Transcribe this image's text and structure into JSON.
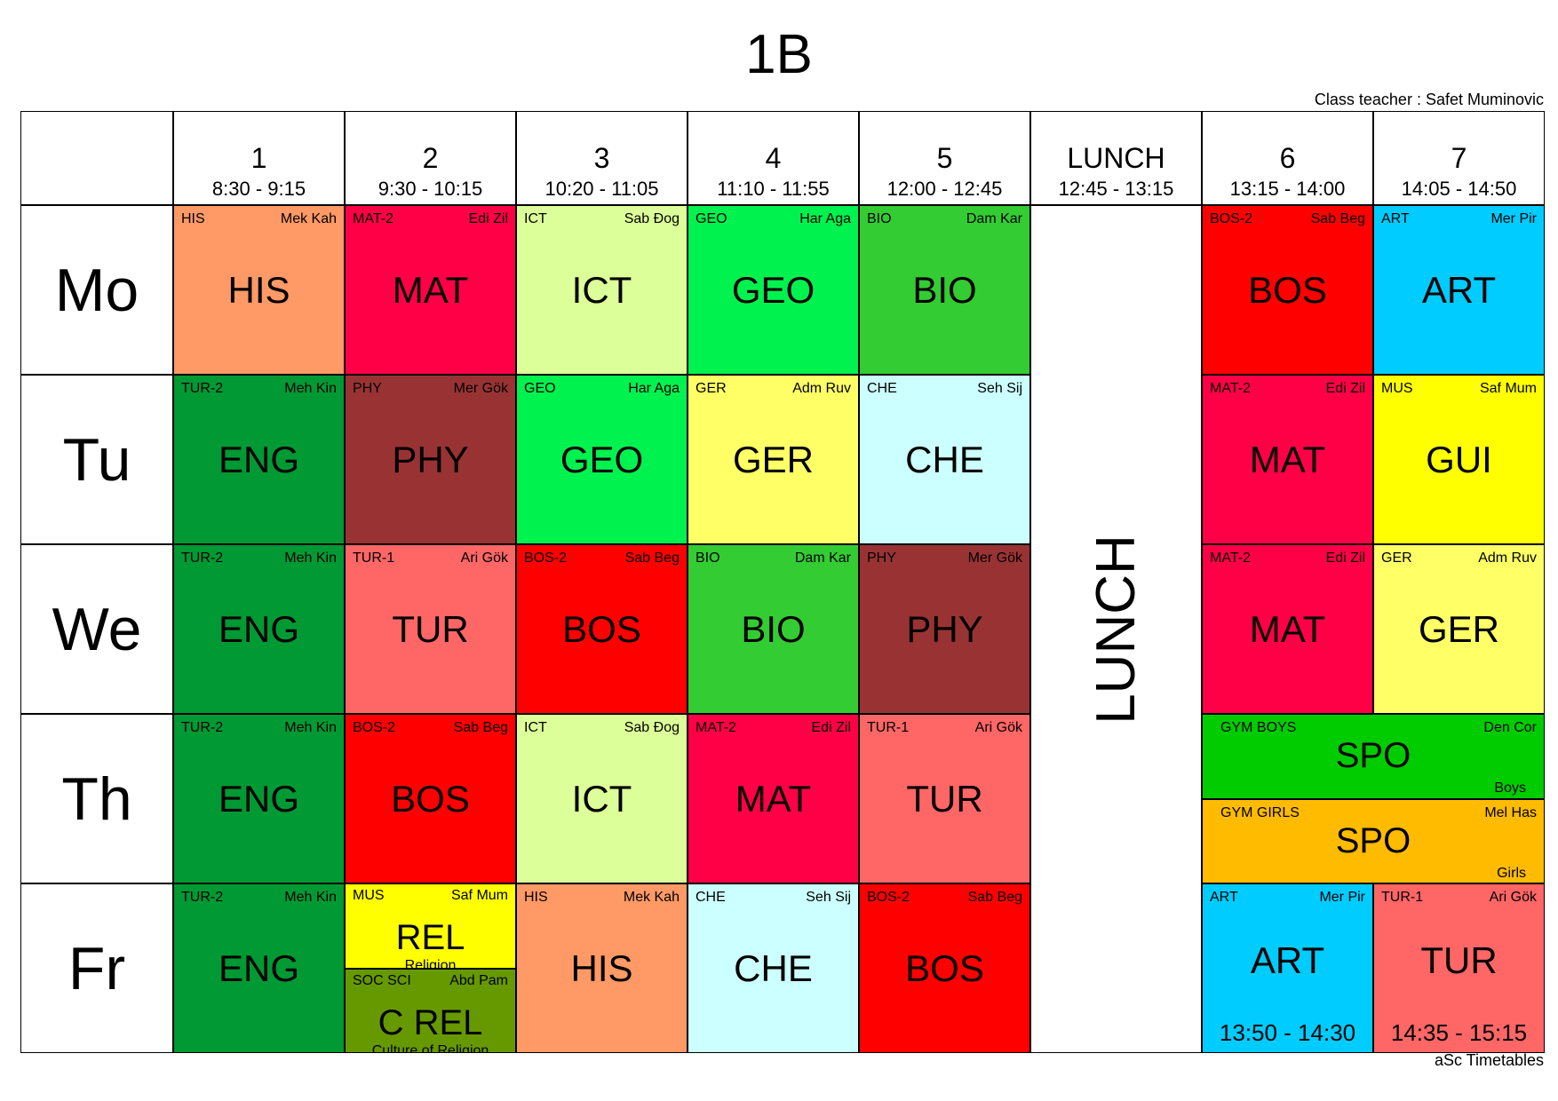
{
  "title": "1B",
  "class_teacher": "Class teacher : Safet Muminovic",
  "footer": "aSc Timetables",
  "periods": [
    {
      "num": "1",
      "time": "8:30 - 9:15"
    },
    {
      "num": "2",
      "time": "9:30 - 10:15"
    },
    {
      "num": "3",
      "time": "10:20 - 11:05"
    },
    {
      "num": "4",
      "time": "11:10 - 11:55"
    },
    {
      "num": "5",
      "time": "12:00 - 12:45"
    },
    {
      "num": "LUNCH",
      "time": "12:45 - 13:15"
    },
    {
      "num": "6",
      "time": "13:15 - 14:00"
    },
    {
      "num": "7",
      "time": "14:05 - 14:50"
    }
  ],
  "days": [
    "Mo",
    "Tu",
    "We",
    "Th",
    "Fr"
  ],
  "lunch_label": "LUNCH",
  "colors": {
    "HIS": "#ff9966",
    "MAT": "#ff0047",
    "ICT": "#ddff99",
    "GEO": "#00f24f",
    "BIO": "#33cc33",
    "BOS": "#ff0000",
    "ART": "#00ccff",
    "ENG": "#009933",
    "PHY": "#993333",
    "GER": "#ffff66",
    "CHE": "#ccffff",
    "GUI": "#ffff00",
    "TUR": "#ff6666",
    "SPO_BOYS": "#00cc00",
    "SPO_GIRLS": "#ffbb00",
    "REL": "#ffff00",
    "CREL": "#669900"
  },
  "lessons": [
    {
      "day": 0,
      "period": 0,
      "group": "HIS",
      "teacher": "Mek Kah",
      "subject": "HIS",
      "color": "HIS"
    },
    {
      "day": 0,
      "period": 1,
      "group": "MAT-2",
      "teacher": "Edi Zil",
      "subject": "MAT",
      "color": "MAT"
    },
    {
      "day": 0,
      "period": 2,
      "group": "ICT",
      "teacher": "Sab Đog",
      "subject": "ICT",
      "color": "ICT"
    },
    {
      "day": 0,
      "period": 3,
      "group": "GEO",
      "teacher": "Har Aga",
      "subject": "GEO",
      "color": "GEO"
    },
    {
      "day": 0,
      "period": 4,
      "group": "BIO",
      "teacher": "Dam Kar",
      "subject": "BIO",
      "color": "BIO"
    },
    {
      "day": 0,
      "period": 6,
      "group": "BOS-2",
      "teacher": "Sab Beg",
      "subject": "BOS",
      "color": "BOS"
    },
    {
      "day": 0,
      "period": 7,
      "group": "ART",
      "teacher": "Mer Pir",
      "subject": "ART",
      "color": "ART"
    },
    {
      "day": 1,
      "period": 0,
      "group": "TUR-2",
      "teacher": "Meh Kin",
      "subject": "ENG",
      "color": "ENG"
    },
    {
      "day": 1,
      "period": 1,
      "group": "PHY",
      "teacher": "Mer Gök",
      "subject": "PHY",
      "color": "PHY"
    },
    {
      "day": 1,
      "period": 2,
      "group": "GEO",
      "teacher": "Har Aga",
      "subject": "GEO",
      "color": "GEO"
    },
    {
      "day": 1,
      "period": 3,
      "group": "GER",
      "teacher": "Adm Ruv",
      "subject": "GER",
      "color": "GER"
    },
    {
      "day": 1,
      "period": 4,
      "group": "CHE",
      "teacher": "Seh Sij",
      "subject": "CHE",
      "color": "CHE"
    },
    {
      "day": 1,
      "period": 6,
      "group": "MAT-2",
      "teacher": "Edi Zil",
      "subject": "MAT",
      "color": "MAT"
    },
    {
      "day": 1,
      "period": 7,
      "group": "MUS",
      "teacher": "Saf Mum",
      "subject": "GUI",
      "color": "GUI"
    },
    {
      "day": 2,
      "period": 0,
      "group": "TUR-2",
      "teacher": "Meh Kin",
      "subject": "ENG",
      "color": "ENG"
    },
    {
      "day": 2,
      "period": 1,
      "group": "TUR-1",
      "teacher": "Ari Gök",
      "subject": "TUR",
      "color": "TUR"
    },
    {
      "day": 2,
      "period": 2,
      "group": "BOS-2",
      "teacher": "Sab Beg",
      "subject": "BOS",
      "color": "BOS"
    },
    {
      "day": 2,
      "period": 3,
      "group": "BIO",
      "teacher": "Dam Kar",
      "subject": "BIO",
      "color": "BIO"
    },
    {
      "day": 2,
      "period": 4,
      "group": "PHY",
      "teacher": "Mer Gök",
      "subject": "PHY",
      "color": "PHY"
    },
    {
      "day": 2,
      "period": 6,
      "group": "MAT-2",
      "teacher": "Edi Zil",
      "subject": "MAT",
      "color": "MAT"
    },
    {
      "day": 2,
      "period": 7,
      "group": "GER",
      "teacher": "Adm Ruv",
      "subject": "GER",
      "color": "GER"
    },
    {
      "day": 3,
      "period": 0,
      "group": "TUR-2",
      "teacher": "Meh Kin",
      "subject": "ENG",
      "color": "ENG"
    },
    {
      "day": 3,
      "period": 1,
      "group": "BOS-2",
      "teacher": "Sab Beg",
      "subject": "BOS",
      "color": "BOS"
    },
    {
      "day": 3,
      "period": 2,
      "group": "ICT",
      "teacher": "Sab Đog",
      "subject": "ICT",
      "color": "ICT"
    },
    {
      "day": 3,
      "period": 3,
      "group": "MAT-2",
      "teacher": "Edi Zil",
      "subject": "MAT",
      "color": "MAT"
    },
    {
      "day": 3,
      "period": 4,
      "group": "TUR-1",
      "teacher": "Ari Gök",
      "subject": "TUR",
      "color": "TUR"
    },
    {
      "day": 4,
      "period": 0,
      "group": "TUR-2",
      "teacher": "Meh Kin",
      "subject": "ENG",
      "color": "ENG"
    },
    {
      "day": 4,
      "period": 2,
      "group": "HIS",
      "teacher": "Mek Kah",
      "subject": "HIS",
      "color": "HIS"
    },
    {
      "day": 4,
      "period": 3,
      "group": "CHE",
      "teacher": "Seh Sij",
      "subject": "CHE",
      "color": "CHE"
    },
    {
      "day": 4,
      "period": 4,
      "group": "BOS-2",
      "teacher": "Sab Beg",
      "subject": "BOS",
      "color": "BOS"
    }
  ],
  "split_lessons": [
    {
      "day": 4,
      "period": 1,
      "parts": [
        {
          "group": "MUS",
          "teacher": "Saf Mum",
          "subject": "REL",
          "subtitle": "Religion",
          "color": "REL"
        },
        {
          "group": "SOC SCI",
          "teacher": "Abd Pam",
          "subject": "C REL",
          "subtitle": "Culture of Religion",
          "color": "CREL"
        }
      ]
    }
  ],
  "sport_lessons": {
    "day": 3,
    "periods": [
      6,
      7
    ],
    "parts": [
      {
        "group": "GYM BOYS",
        "teacher": "Den Cor",
        "subject": "SPO",
        "note": "Boys",
        "color": "SPO_BOYS"
      },
      {
        "group": "GYM GIRLS",
        "teacher": "Mel Has",
        "subject": "SPO",
        "note": "Girls",
        "color": "SPO_GIRLS"
      }
    ]
  },
  "timed_lessons": [
    {
      "day": 4,
      "period": 6,
      "group": "ART",
      "teacher": "Mer Pir",
      "subject": "ART",
      "time": "13:50 - 14:30",
      "color": "ART"
    },
    {
      "day": 4,
      "period": 7,
      "group": "TUR-1",
      "teacher": "Ari Gök",
      "subject": "TUR",
      "time": "14:35 - 15:15",
      "color": "TUR"
    }
  ]
}
